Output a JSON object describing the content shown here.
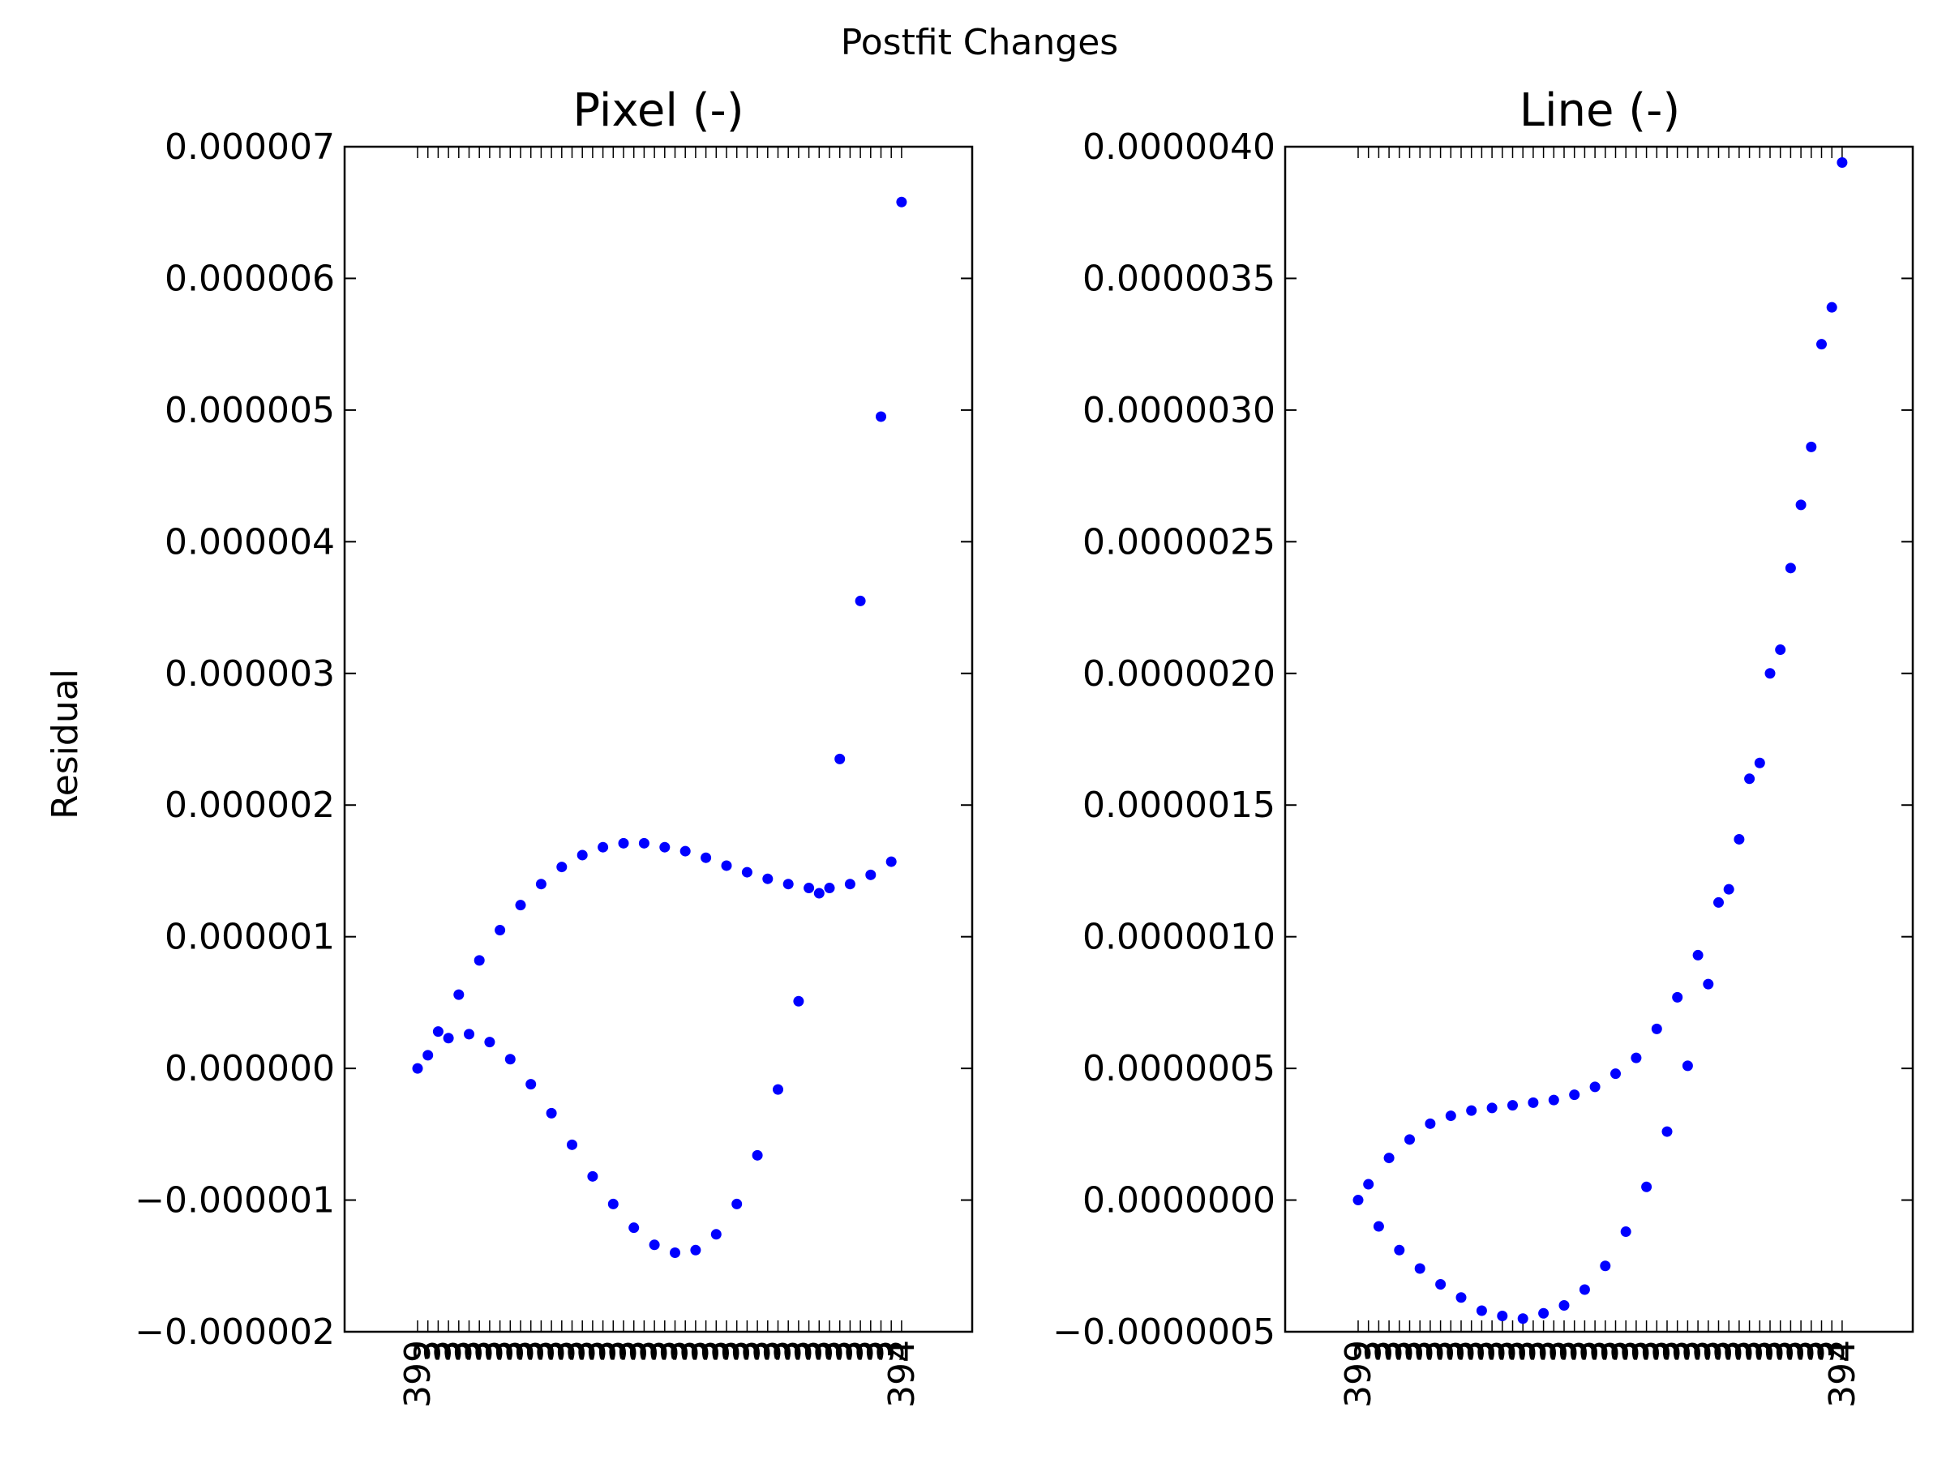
{
  "figure": {
    "suptitle": "Postfit Changes",
    "ylabel": "Residual"
  },
  "chart_data": [
    {
      "type": "scatter",
      "title": "Pixel (-)",
      "ylabel": "Residual",
      "ylim": [
        -2e-06,
        7e-06
      ],
      "yticks": [
        "−0.000002",
        "−0.000001",
        "0.000000",
        "0.000001",
        "0.000002",
        "0.000003",
        "0.000004",
        "0.000005",
        "0.000006",
        "0.000007"
      ],
      "xtick_label_first": "399",
      "xtick_label_last": "394",
      "xtick_label_fill": "3",
      "marker_color": "#0000ff",
      "series": [
        {
          "x": [
            0,
            1,
            2,
            3,
            4,
            5,
            6,
            7,
            8,
            9,
            10,
            11,
            12,
            13,
            14,
            15,
            16,
            17,
            18,
            19,
            20,
            21,
            22,
            23,
            24,
            25,
            26,
            27,
            28,
            29,
            30,
            31,
            32,
            33,
            34,
            35,
            36,
            37,
            38,
            39,
            40,
            41,
            42,
            43,
            44,
            45,
            46,
            47
          ],
          "y": [
            0.0,
            1e-07,
            2.8e-07,
            2.3e-07,
            5.6e-07,
            2.6e-07,
            8.2e-07,
            2e-07,
            1.05e-06,
            7e-08,
            1.24e-06,
            -1.2e-07,
            1.4e-06,
            -3.4e-07,
            1.53e-06,
            -5.8e-07,
            1.62e-06,
            -8.2e-07,
            1.68e-06,
            -1.03e-06,
            1.71e-06,
            -1.21e-06,
            1.71e-06,
            -1.34e-06,
            1.68e-06,
            -1.4e-06,
            1.65e-06,
            -1.38e-06,
            1.6e-06,
            -1.26e-06,
            1.54e-06,
            -1.03e-06,
            1.49e-06,
            -6.6e-07,
            1.44e-06,
            -1.6e-07,
            1.4e-06,
            5.1e-07,
            1.37e-06,
            1.33e-06,
            1.37e-06,
            2.35e-06,
            1.4e-06,
            3.55e-06,
            1.47e-06,
            4.95e-06,
            1.57e-06,
            6.58e-06
          ]
        }
      ]
    },
    {
      "type": "scatter",
      "title": "Line (-)",
      "ylim": [
        -5e-07,
        4e-06
      ],
      "yticks": [
        "−0.0000005",
        "0.0000000",
        "0.0000005",
        "0.0000010",
        "0.0000015",
        "0.0000020",
        "0.0000025",
        "0.0000030",
        "0.0000035",
        "0.0000040"
      ],
      "xtick_label_first": "399",
      "xtick_label_last": "394",
      "xtick_label_fill": "3",
      "marker_color": "#0000ff",
      "series": [
        {
          "x": [
            0,
            1,
            2,
            3,
            4,
            5,
            6,
            7,
            8,
            9,
            10,
            11,
            12,
            13,
            14,
            15,
            16,
            17,
            18,
            19,
            20,
            21,
            22,
            23,
            24,
            25,
            26,
            27,
            28,
            29,
            30,
            31,
            32,
            33,
            34,
            35,
            36,
            37,
            38,
            39,
            40,
            41,
            42,
            43,
            44,
            45,
            46,
            47
          ],
          "y": [
            0.0,
            6e-08,
            -1e-07,
            1.6e-07,
            -1.9e-07,
            2.3e-07,
            -2.6e-07,
            2.9e-07,
            -3.2e-07,
            3.2e-07,
            -3.7e-07,
            3.4e-07,
            -4.2e-07,
            3.5e-07,
            -4.4e-07,
            3.6e-07,
            -4.5e-07,
            3.7e-07,
            -4.3e-07,
            3.8e-07,
            -4e-07,
            4e-07,
            -3.4e-07,
            4.3e-07,
            -2.5e-07,
            4.8e-07,
            -1.2e-07,
            5.4e-07,
            5e-08,
            6.5e-07,
            2.6e-07,
            7.7e-07,
            5.1e-07,
            9.3e-07,
            8.2e-07,
            1.13e-06,
            1.18e-06,
            1.37e-06,
            1.6e-06,
            1.66e-06,
            2e-06,
            2.09e-06,
            2.4e-06,
            2.64e-06,
            2.86e-06,
            3.25e-06,
            3.39e-06,
            3.94e-06
          ]
        }
      ]
    }
  ]
}
